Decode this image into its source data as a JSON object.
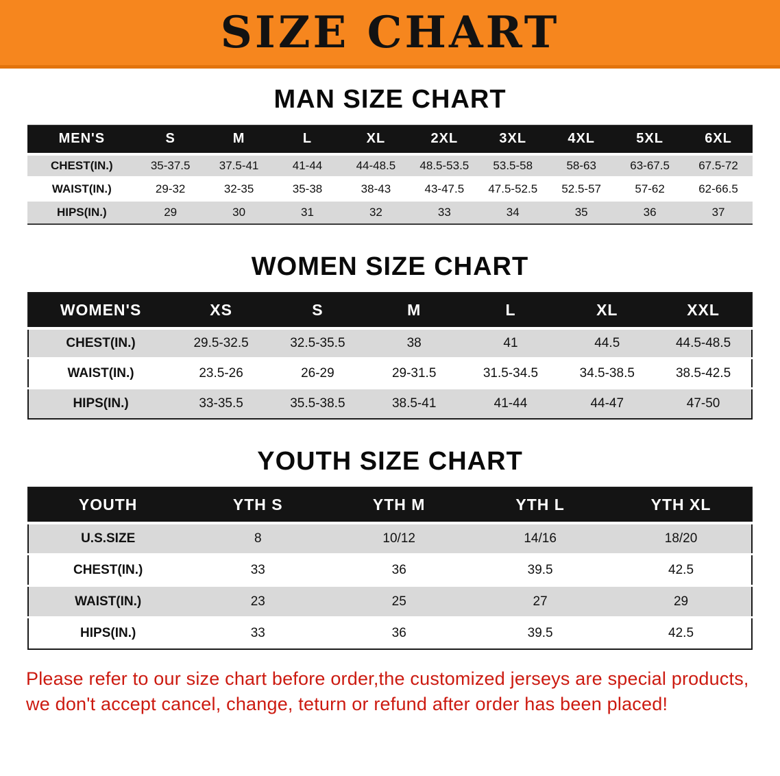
{
  "banner": {
    "title": "SIZE CHART"
  },
  "colors": {
    "banner_bg": "#F6861E",
    "banner_edge": "#E2730C",
    "table_header_bg": "#141414",
    "table_header_text": "#FFFFFF",
    "row_shade": "#D9D9D9",
    "text": "#111111",
    "disclaimer_text": "#CC1A10"
  },
  "sections": [
    {
      "id": "men",
      "heading": "MAN SIZE CHART",
      "columns": [
        "MEN'S",
        "S",
        "M",
        "L",
        "XL",
        "2XL",
        "3XL",
        "4XL",
        "5XL",
        "6XL"
      ],
      "rows": [
        {
          "label": "CHEST(IN.)",
          "values": [
            "35-37.5",
            "37.5-41",
            "41-44",
            "44-48.5",
            "48.5-53.5",
            "53.5-58",
            "58-63",
            "63-67.5",
            "67.5-72"
          ]
        },
        {
          "label": "WAIST(IN.)",
          "values": [
            "29-32",
            "32-35",
            "35-38",
            "38-43",
            "43-47.5",
            "47.5-52.5",
            "52.5-57",
            "57-62",
            "62-66.5"
          ]
        },
        {
          "label": "HIPS(IN.)",
          "values": [
            "29",
            "30",
            "31",
            "32",
            "33",
            "34",
            "35",
            "36",
            "37"
          ]
        }
      ]
    },
    {
      "id": "women",
      "heading": "WOMEN SIZE CHART",
      "columns": [
        "WOMEN'S",
        "XS",
        "S",
        "M",
        "L",
        "XL",
        "XXL"
      ],
      "rows": [
        {
          "label": "CHEST(IN.)",
          "values": [
            "29.5-32.5",
            "32.5-35.5",
            "38",
            "41",
            "44.5",
            "44.5-48.5"
          ]
        },
        {
          "label": "WAIST(IN.)",
          "values": [
            "23.5-26",
            "26-29",
            "29-31.5",
            "31.5-34.5",
            "34.5-38.5",
            "38.5-42.5"
          ]
        },
        {
          "label": "HIPS(IN.)",
          "values": [
            "33-35.5",
            "35.5-38.5",
            "38.5-41",
            "41-44",
            "44-47",
            "47-50"
          ]
        }
      ]
    },
    {
      "id": "youth",
      "heading": "YOUTH SIZE CHART",
      "columns": [
        "YOUTH",
        "YTH S",
        "YTH M",
        "YTH L",
        "YTH XL"
      ],
      "rows": [
        {
          "label": "U.S.SIZE",
          "values": [
            "8",
            "10/12",
            "14/16",
            "18/20"
          ]
        },
        {
          "label": "CHEST(IN.)",
          "values": [
            "33",
            "36",
            "39.5",
            "42.5"
          ]
        },
        {
          "label": "WAIST(IN.)",
          "values": [
            "23",
            "25",
            "27",
            "29"
          ]
        },
        {
          "label": "HIPS(IN.)",
          "values": [
            "33",
            "36",
            "39.5",
            "42.5"
          ]
        }
      ]
    }
  ],
  "disclaimer": {
    "lines": [
      "Please refer to our size chart before order,the customized jerseys are special products,",
      "we don't accept cancel, change, teturn or refund after order has been placed!"
    ]
  }
}
